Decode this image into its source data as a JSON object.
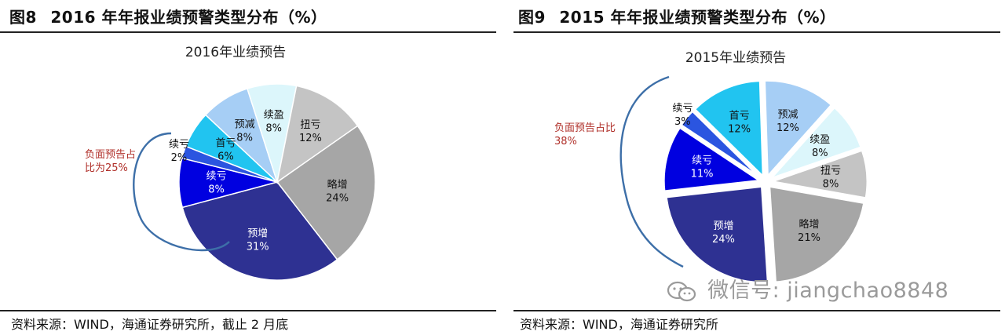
{
  "figures": [
    {
      "label": "图8",
      "caption": "2016 年年报业绩预警类型分布（%）",
      "source": "资料来源：WIND，海通证券研究所，截止 2 月底",
      "annotation": [
        "负面预告占",
        "比为25%"
      ],
      "chart_data": {
        "type": "pie",
        "title": "2016年业绩预告",
        "start_angle_deg": -35,
        "direction": "clockwise",
        "slices": [
          {
            "name": "略增",
            "value": 24,
            "label": "24%",
            "color": "#a6a6a6"
          },
          {
            "name": "预增",
            "value": 31,
            "label": "31%",
            "color": "#2e3192"
          },
          {
            "name": "续亏",
            "value": 8,
            "label": "8%",
            "color": "#0000e0",
            "rawLabel": "续亏"
          },
          {
            "name": "续亏",
            "value": 2,
            "label": "2%",
            "color": "#2b55e0"
          },
          {
            "name": "首亏",
            "value": 6,
            "label": "6%",
            "color": "#21c4f0"
          },
          {
            "name": "预减",
            "value": 8,
            "label": "8%",
            "color": "#a6cef5"
          },
          {
            "name": "续盈",
            "value": 8,
            "label": "8%",
            "color": "#dcf6fb"
          },
          {
            "name": "扭亏",
            "value": 12,
            "label": "12%",
            "color": "#c4c4c4"
          }
        ]
      }
    },
    {
      "label": "图9",
      "caption": "2015 年年报业绩预警类型分布（%）",
      "source": "资料来源：WIND，海通证券研究所",
      "annotation": [
        "负面预告占比",
        "38%"
      ],
      "chart_data": {
        "type": "pie",
        "title": "2015年业绩预告",
        "start_angle_deg": 10,
        "direction": "clockwise",
        "exploded": true,
        "slices": [
          {
            "name": "略增",
            "value": 21,
            "label": "21%",
            "color": "#a6a6a6"
          },
          {
            "name": "预增",
            "value": 24,
            "label": "24%",
            "color": "#2e3192"
          },
          {
            "name": "续亏",
            "value": 11,
            "label": "11%",
            "color": "#0000e0"
          },
          {
            "name": "续亏",
            "value": 3,
            "label": "3%",
            "color": "#2b55e0"
          },
          {
            "name": "首亏",
            "value": 12,
            "label": "12%",
            "color": "#21c4f0"
          },
          {
            "name": "预减",
            "value": 12,
            "label": "12%",
            "color": "#a6cef5"
          },
          {
            "name": "续盈",
            "value": 8,
            "label": "8%",
            "color": "#dcf6fb"
          },
          {
            "name": "扭亏",
            "value": 8,
            "label": "8%",
            "color": "#c4c4c4"
          }
        ]
      }
    }
  ],
  "watermark": "微信号: jiangchao8848"
}
